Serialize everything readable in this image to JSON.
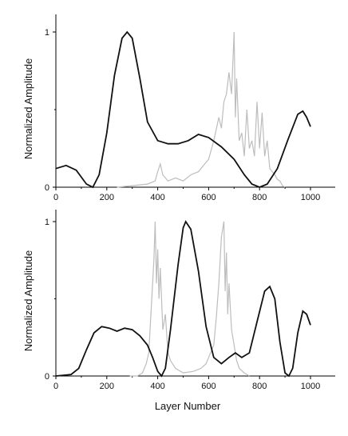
{
  "chart_data": [
    {
      "type": "line",
      "ylabel": "Normalized Amplitude",
      "xlabel": "",
      "xlim": [
        0,
        1000
      ],
      "ylim": [
        0,
        1
      ],
      "x_ticks": [
        0,
        200,
        400,
        600,
        800,
        1000
      ],
      "y_ticks": [
        0,
        1
      ],
      "grid": false,
      "series": [
        {
          "color": "#111111",
          "points": [
            [
              0,
              0.12
            ],
            [
              40,
              0.14
            ],
            [
              80,
              0.11
            ],
            [
              120,
              0.02
            ],
            [
              145,
              0.0
            ],
            [
              170,
              0.08
            ],
            [
              200,
              0.35
            ],
            [
              230,
              0.72
            ],
            [
              260,
              0.96
            ],
            [
              280,
              1.0
            ],
            [
              300,
              0.96
            ],
            [
              330,
              0.7
            ],
            [
              360,
              0.42
            ],
            [
              400,
              0.3
            ],
            [
              440,
              0.28
            ],
            [
              480,
              0.28
            ],
            [
              520,
              0.3
            ],
            [
              560,
              0.34
            ],
            [
              600,
              0.32
            ],
            [
              650,
              0.26
            ],
            [
              700,
              0.18
            ],
            [
              740,
              0.08
            ],
            [
              770,
              0.02
            ],
            [
              800,
              0.0
            ],
            [
              830,
              0.02
            ],
            [
              870,
              0.12
            ],
            [
              910,
              0.3
            ],
            [
              950,
              0.47
            ],
            [
              970,
              0.49
            ],
            [
              985,
              0.45
            ],
            [
              1000,
              0.39
            ]
          ]
        },
        {
          "color": "#bdbdbd",
          "points": [
            [
              240,
              0.0
            ],
            [
              300,
              0.01
            ],
            [
              360,
              0.02
            ],
            [
              390,
              0.04
            ],
            [
              400,
              0.1
            ],
            [
              410,
              0.15
            ],
            [
              420,
              0.08
            ],
            [
              440,
              0.04
            ],
            [
              470,
              0.06
            ],
            [
              500,
              0.04
            ],
            [
              530,
              0.08
            ],
            [
              560,
              0.1
            ],
            [
              580,
              0.14
            ],
            [
              600,
              0.18
            ],
            [
              620,
              0.3
            ],
            [
              640,
              0.45
            ],
            [
              650,
              0.38
            ],
            [
              660,
              0.55
            ],
            [
              670,
              0.6
            ],
            [
              680,
              0.74
            ],
            [
              690,
              0.6
            ],
            [
              700,
              1.0
            ],
            [
              705,
              0.45
            ],
            [
              710,
              0.7
            ],
            [
              720,
              0.3
            ],
            [
              730,
              0.35
            ],
            [
              740,
              0.2
            ],
            [
              750,
              0.5
            ],
            [
              760,
              0.25
            ],
            [
              770,
              0.3
            ],
            [
              780,
              0.2
            ],
            [
              790,
              0.55
            ],
            [
              800,
              0.25
            ],
            [
              810,
              0.48
            ],
            [
              820,
              0.2
            ],
            [
              830,
              0.3
            ],
            [
              840,
              0.12
            ],
            [
              850,
              0.1
            ],
            [
              860,
              0.08
            ],
            [
              870,
              0.05
            ],
            [
              880,
              0.04
            ],
            [
              890,
              0.01
            ],
            [
              900,
              0.0
            ]
          ]
        }
      ]
    },
    {
      "type": "line",
      "ylabel": "Normalized Amplitude",
      "xlabel": "Layer Number",
      "xlim": [
        0,
        1000
      ],
      "ylim": [
        0,
        1
      ],
      "x_ticks": [
        0,
        200,
        400,
        600,
        800,
        1000
      ],
      "y_ticks": [
        0,
        1
      ],
      "grid": false,
      "series": [
        {
          "color": "#111111",
          "points": [
            [
              0,
              0.0
            ],
            [
              60,
              0.01
            ],
            [
              90,
              0.05
            ],
            [
              120,
              0.17
            ],
            [
              150,
              0.28
            ],
            [
              180,
              0.32
            ],
            [
              210,
              0.31
            ],
            [
              240,
              0.29
            ],
            [
              270,
              0.31
            ],
            [
              300,
              0.3
            ],
            [
              330,
              0.26
            ],
            [
              360,
              0.2
            ],
            [
              380,
              0.12
            ],
            [
              400,
              0.03
            ],
            [
              415,
              0.0
            ],
            [
              430,
              0.05
            ],
            [
              450,
              0.3
            ],
            [
              480,
              0.72
            ],
            [
              500,
              0.96
            ],
            [
              510,
              1.0
            ],
            [
              530,
              0.95
            ],
            [
              560,
              0.68
            ],
            [
              590,
              0.32
            ],
            [
              620,
              0.12
            ],
            [
              650,
              0.08
            ],
            [
              680,
              0.12
            ],
            [
              705,
              0.15
            ],
            [
              730,
              0.12
            ],
            [
              760,
              0.15
            ],
            [
              790,
              0.35
            ],
            [
              820,
              0.55
            ],
            [
              840,
              0.58
            ],
            [
              860,
              0.5
            ],
            [
              880,
              0.22
            ],
            [
              900,
              0.02
            ],
            [
              915,
              0.0
            ],
            [
              930,
              0.05
            ],
            [
              950,
              0.28
            ],
            [
              970,
              0.42
            ],
            [
              985,
              0.4
            ],
            [
              1000,
              0.33
            ]
          ]
        },
        {
          "color": "#bdbdbd",
          "points": [
            [
              290,
              0.0
            ],
            [
              320,
              0.0
            ],
            [
              340,
              0.02
            ],
            [
              355,
              0.08
            ],
            [
              365,
              0.15
            ],
            [
              375,
              0.45
            ],
            [
              385,
              0.75
            ],
            [
              390,
              1.0
            ],
            [
              395,
              0.6
            ],
            [
              400,
              0.82
            ],
            [
              405,
              0.5
            ],
            [
              410,
              0.7
            ],
            [
              420,
              0.3
            ],
            [
              430,
              0.4
            ],
            [
              440,
              0.15
            ],
            [
              450,
              0.1
            ],
            [
              470,
              0.05
            ],
            [
              500,
              0.02
            ],
            [
              540,
              0.03
            ],
            [
              570,
              0.05
            ],
            [
              590,
              0.08
            ],
            [
              600,
              0.12
            ],
            [
              620,
              0.2
            ],
            [
              630,
              0.38
            ],
            [
              640,
              0.6
            ],
            [
              650,
              0.9
            ],
            [
              660,
              1.0
            ],
            [
              665,
              0.55
            ],
            [
              670,
              0.8
            ],
            [
              675,
              0.4
            ],
            [
              680,
              0.6
            ],
            [
              690,
              0.3
            ],
            [
              700,
              0.2
            ],
            [
              710,
              0.1
            ],
            [
              720,
              0.05
            ],
            [
              740,
              0.02
            ],
            [
              760,
              0.0
            ]
          ]
        }
      ]
    }
  ]
}
